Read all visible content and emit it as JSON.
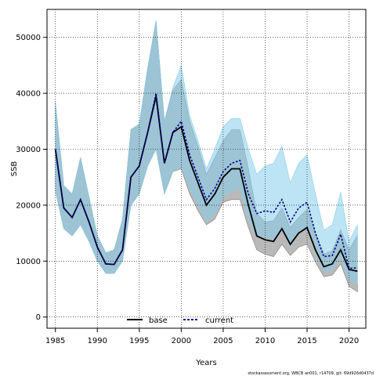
{
  "chart_data": {
    "type": "line",
    "xlabel": "Years",
    "ylabel": "SSB",
    "xlim": [
      1984,
      2022
    ],
    "ylim": [
      -2000,
      55000
    ],
    "xticks": [
      1985,
      1990,
      1995,
      2000,
      2005,
      2010,
      2015,
      2020
    ],
    "yticks": [
      0,
      10000,
      20000,
      30000,
      40000,
      50000
    ],
    "grid": true,
    "legend_position": "bottom-center",
    "footer": "stockassessment.org, WBCB an001, r14709, git: 69d926d0437d",
    "x": [
      1985,
      1986,
      1987,
      1988,
      1989,
      1990,
      1991,
      1992,
      1993,
      1994,
      1995,
      1996,
      1997,
      1998,
      1999,
      2000,
      2001,
      2002,
      2003,
      2004,
      2005,
      2006,
      2007,
      2008,
      2009,
      2010,
      2011,
      2012,
      2013,
      2014,
      2015,
      2016,
      2017,
      2018,
      2019,
      2020,
      2021
    ],
    "series": [
      {
        "name": "base",
        "color": "#000000",
        "line_style": "solid",
        "band_color": "#7f7f7f",
        "values": [
          30000,
          19500,
          17800,
          21000,
          17000,
          12500,
          9500,
          9400,
          12000,
          25000,
          27000,
          33000,
          39500,
          27500,
          33000,
          34000,
          28000,
          24000,
          20000,
          22000,
          25000,
          26500,
          26500,
          20000,
          14500,
          13800,
          13500,
          15800,
          13000,
          15000,
          16000,
          12000,
          9000,
          9500,
          12000,
          8500,
          8200
        ],
        "lower": [
          22500,
          15800,
          14500,
          16500,
          13500,
          10000,
          7800,
          7800,
          10000,
          20000,
          22000,
          27000,
          30000,
          22000,
          26000,
          26500,
          22000,
          19000,
          16500,
          17500,
          20500,
          21000,
          21000,
          16000,
          12000,
          11200,
          10800,
          13000,
          11000,
          12500,
          13000,
          9800,
          7200,
          7500,
          9500,
          5500,
          4500
        ],
        "upper": [
          38500,
          23500,
          22000,
          28500,
          21500,
          14500,
          11500,
          12000,
          17500,
          33500,
          34500,
          44500,
          53000,
          35000,
          40500,
          42500,
          35000,
          30500,
          25500,
          28500,
          31500,
          33500,
          33500,
          26500,
          18500,
          17000,
          17200,
          19500,
          16000,
          17800,
          19200,
          15000,
          11300,
          11800,
          15600,
          12000,
          14600
        ]
      },
      {
        "name": "current",
        "color": "#00008b",
        "line_style": "dashed",
        "band_color": "#87ceeb",
        "values": [
          30000,
          19500,
          17800,
          21000,
          17000,
          12500,
          9500,
          9400,
          12000,
          25000,
          27000,
          33000,
          40000,
          27500,
          33000,
          35000,
          29000,
          25000,
          21000,
          23000,
          26000,
          27500,
          28000,
          22000,
          18500,
          19000,
          18700,
          21000,
          17000,
          19500,
          20500,
          15000,
          10800,
          11000,
          14800,
          8700,
          8800
        ],
        "lower": [
          22500,
          15800,
          14500,
          16500,
          13500,
          10000,
          7800,
          7800,
          10000,
          20000,
          22000,
          27000,
          30000,
          22000,
          26000,
          27000,
          23000,
          20000,
          17000,
          18500,
          21500,
          22500,
          23000,
          17500,
          14500,
          14200,
          14000,
          16000,
          13200,
          15000,
          15800,
          11800,
          8200,
          8500,
          11000,
          6500,
          6000
        ],
        "upper": [
          38500,
          23500,
          22000,
          28500,
          21500,
          14500,
          11500,
          12000,
          17500,
          33500,
          34500,
          44500,
          53000,
          35000,
          41000,
          45000,
          36000,
          31500,
          26500,
          30000,
          34000,
          35500,
          35500,
          30000,
          25500,
          27000,
          27500,
          30500,
          24000,
          27500,
          29000,
          22000,
          15500,
          16500,
          22300,
          13500,
          16500
        ]
      }
    ]
  }
}
